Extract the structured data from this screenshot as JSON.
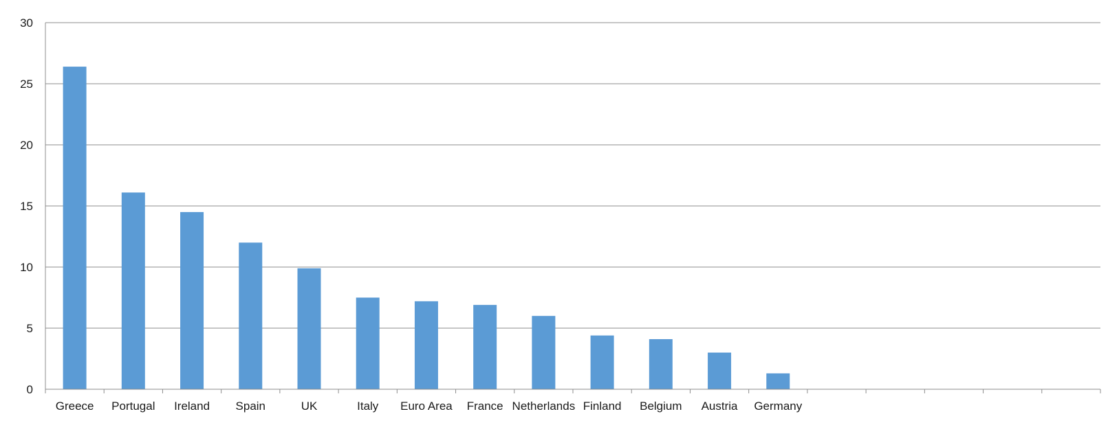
{
  "chart_data": {
    "type": "bar",
    "title": "",
    "xlabel": "",
    "ylabel": "",
    "ylim": [
      0,
      30
    ],
    "yticks": [
      0,
      5,
      10,
      15,
      20,
      25,
      30
    ],
    "grid": true,
    "legend": "none",
    "bar_color": "#5b9bd5",
    "grid_color": "#8c8c8c",
    "categories": [
      "Greece",
      "Portugal",
      "Ireland",
      "Spain",
      "UK",
      "Italy",
      "Euro Area",
      "France",
      "Netherlands",
      "Finland",
      "Belgium",
      "Austria",
      "Germany",
      "",
      "",
      "",
      "",
      ""
    ],
    "values": [
      26.4,
      16.1,
      14.5,
      12.0,
      9.9,
      7.5,
      7.2,
      6.9,
      6.0,
      4.4,
      4.1,
      3.0,
      1.3,
      null,
      null,
      null,
      null,
      null
    ]
  }
}
